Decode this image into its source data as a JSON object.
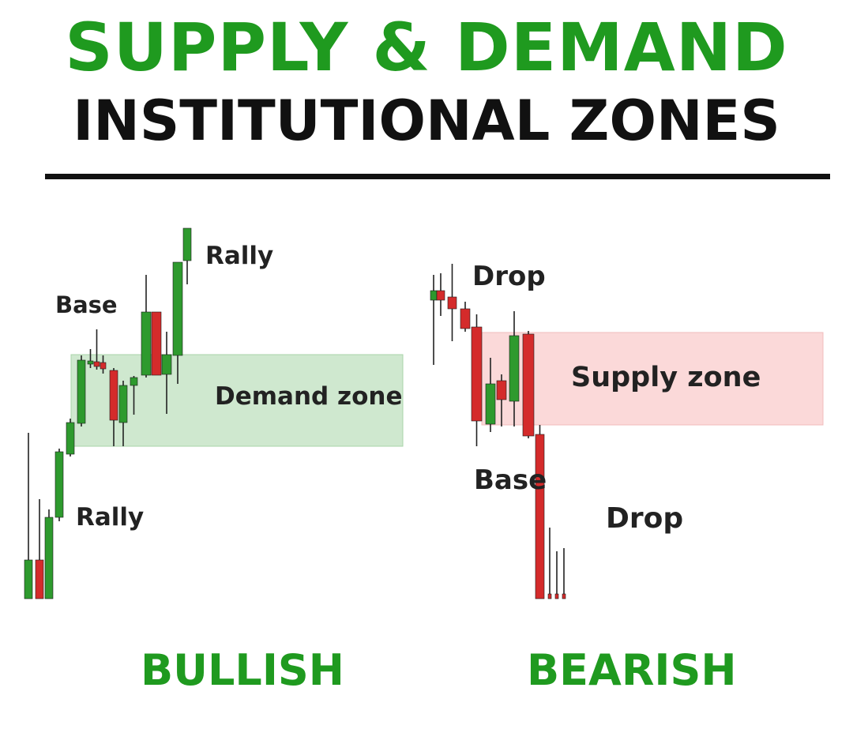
{
  "header": {
    "title_line1": "SUPPLY & DEMAND",
    "title_line2": "INSTITUTIONAL ZONES"
  },
  "colors": {
    "title_green": "#1f9a1f",
    "title_black": "#111111",
    "candle_up": "#2e9a2e",
    "candle_down": "#d42b2b",
    "demand_zone_fill": "#cfe8cf",
    "supply_zone_fill": "#fbd9d9",
    "wick": "#222222"
  },
  "bullish": {
    "caption": "BULLISH",
    "zone_label": "Demand zone",
    "labels": {
      "rally_low": "Rally",
      "base": "Base",
      "rally_high": "Rally"
    }
  },
  "bearish": {
    "caption": "BEARISH",
    "zone_label": "Supply zone",
    "labels": {
      "drop_high": "Drop",
      "base": "Base",
      "drop_low": "Drop"
    }
  }
}
